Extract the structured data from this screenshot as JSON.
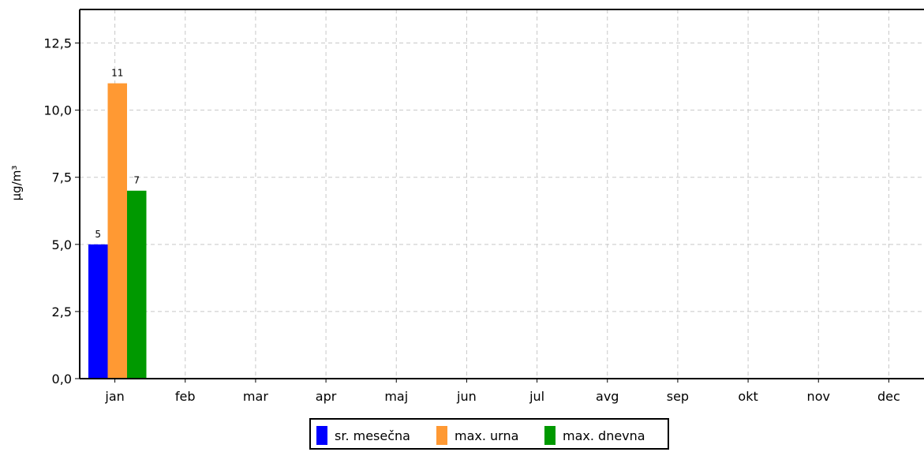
{
  "chart_data": {
    "type": "bar",
    "categories": [
      "jan",
      "feb",
      "mar",
      "apr",
      "maj",
      "jun",
      "jul",
      "avg",
      "sep",
      "okt",
      "nov",
      "dec"
    ],
    "series": [
      {
        "name": "sr. mesečna",
        "color": "#0000ff",
        "values": [
          5,
          null,
          null,
          null,
          null,
          null,
          null,
          null,
          null,
          null,
          null,
          null
        ],
        "labels": [
          "5"
        ]
      },
      {
        "name": "max. urna",
        "color": "#ff9933",
        "values": [
          11,
          null,
          null,
          null,
          null,
          null,
          null,
          null,
          null,
          null,
          null,
          null
        ],
        "labels": [
          "11"
        ]
      },
      {
        "name": "max. dnevna",
        "color": "#009900",
        "values": [
          7,
          null,
          null,
          null,
          null,
          null,
          null,
          null,
          null,
          null,
          null,
          null
        ],
        "labels": [
          "7"
        ]
      }
    ],
    "title": "",
    "xlabel": "",
    "ylabel": "µg/m³",
    "ylim": [
      0,
      13.75
    ],
    "yticks": [
      "0,0",
      "2,5",
      "5,0",
      "7,5",
      "10,0",
      "12,5"
    ],
    "ytick_values": [
      0,
      2.5,
      5,
      7.5,
      10,
      12.5
    ],
    "grid": true,
    "legend_position": "bottom-center"
  }
}
